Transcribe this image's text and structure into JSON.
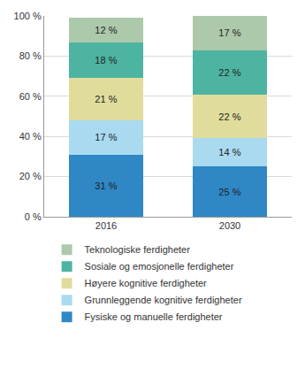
{
  "chart_data": {
    "type": "bar",
    "stacked": true,
    "data_labels": true,
    "grid": true,
    "legend": "bottom",
    "categories": [
      "2016",
      "2030"
    ],
    "series": [
      {
        "name": "Fysiske og manuelle ferdigheter",
        "color": "#2f87c6",
        "values": [
          31,
          25
        ],
        "value_labels": [
          "31 %",
          "25 %"
        ]
      },
      {
        "name": "Grunnleggende kognitive ferdigheter",
        "color": "#a9daf0",
        "values": [
          17,
          14
        ],
        "value_labels": [
          "17 %",
          "14 %"
        ]
      },
      {
        "name": "Høyere kognitive ferdigheter",
        "color": "#e0dd9c",
        "values": [
          21,
          22
        ],
        "value_labels": [
          "21 %",
          "22 %"
        ]
      },
      {
        "name": "Sosiale og emosjonelle ferdigheter",
        "color": "#4db4a2",
        "values": [
          18,
          22
        ],
        "value_labels": [
          "18 %",
          "22 %"
        ]
      },
      {
        "name": "Teknologiske ferdigheter",
        "color": "#acc9ab",
        "values": [
          12,
          17
        ],
        "value_labels": [
          "12 %",
          "17 %"
        ]
      }
    ],
    "ylim": [
      0,
      100
    ],
    "yticks": [
      {
        "value": 0,
        "label": "0 %"
      },
      {
        "value": 20,
        "label": "20 %"
      },
      {
        "value": 40,
        "label": "40 %"
      },
      {
        "value": 60,
        "label": "60 %"
      },
      {
        "value": 80,
        "label": "80 %"
      },
      {
        "value": 100,
        "label": "100 %"
      }
    ]
  }
}
